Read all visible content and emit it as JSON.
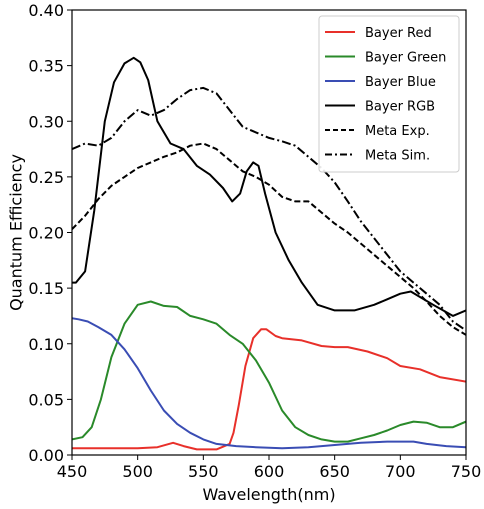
{
  "chart_data": {
    "type": "line",
    "xlabel": "Wavelength(nm)",
    "ylabel": "Quantum Efficiency",
    "xlim": [
      450,
      750
    ],
    "ylim": [
      0.0,
      0.4
    ],
    "xticks": [
      "450",
      "500",
      "550",
      "600",
      "650",
      "700",
      "750"
    ],
    "yticks": [
      "0.00",
      "0.05",
      "0.10",
      "0.15",
      "0.20",
      "0.25",
      "0.30",
      "0.35",
      "0.40"
    ],
    "grid": false,
    "legend_position": "top-right",
    "series": [
      {
        "name": "Bayer Red",
        "color": "#e8302a",
        "dash": "solid",
        "x": [
          450,
          460,
          480,
          500,
          515,
          527,
          535,
          545,
          560,
          570,
          573,
          577,
          582,
          588,
          594,
          598,
          605,
          610,
          625,
          640,
          650,
          660,
          675,
          690,
          700,
          715,
          730,
          750
        ],
        "y": [
          0.006,
          0.006,
          0.006,
          0.006,
          0.007,
          0.011,
          0.008,
          0.005,
          0.005,
          0.01,
          0.02,
          0.045,
          0.08,
          0.105,
          0.113,
          0.113,
          0.107,
          0.105,
          0.103,
          0.098,
          0.097,
          0.097,
          0.093,
          0.087,
          0.08,
          0.077,
          0.07,
          0.066
        ]
      },
      {
        "name": "Bayer Green",
        "color": "#2a8a2a",
        "dash": "solid",
        "x": [
          450,
          458,
          465,
          472,
          480,
          490,
          500,
          510,
          520,
          530,
          540,
          550,
          560,
          570,
          580,
          590,
          600,
          610,
          620,
          630,
          640,
          650,
          660,
          670,
          680,
          690,
          700,
          710,
          720,
          730,
          740,
          750
        ],
        "y": [
          0.014,
          0.016,
          0.025,
          0.05,
          0.088,
          0.118,
          0.135,
          0.138,
          0.134,
          0.133,
          0.125,
          0.122,
          0.118,
          0.108,
          0.1,
          0.085,
          0.065,
          0.04,
          0.025,
          0.018,
          0.014,
          0.012,
          0.012,
          0.015,
          0.018,
          0.022,
          0.027,
          0.03,
          0.029,
          0.025,
          0.025,
          0.03
        ]
      },
      {
        "name": "Bayer Blue",
        "color": "#3a4db4",
        "dash": "solid",
        "x": [
          450,
          455,
          462,
          470,
          480,
          490,
          500,
          510,
          520,
          530,
          540,
          550,
          560,
          575,
          590,
          610,
          630,
          650,
          670,
          690,
          700,
          710,
          720,
          735,
          750
        ],
        "y": [
          0.123,
          0.122,
          0.12,
          0.115,
          0.108,
          0.095,
          0.078,
          0.058,
          0.04,
          0.028,
          0.02,
          0.014,
          0.01,
          0.008,
          0.007,
          0.006,
          0.007,
          0.009,
          0.011,
          0.012,
          0.012,
          0.012,
          0.01,
          0.008,
          0.007
        ]
      },
      {
        "name": "Bayer RGB",
        "color": "#000000",
        "dash": "solid",
        "x": [
          450,
          453,
          460,
          467,
          475,
          482,
          490,
          497,
          502,
          508,
          515,
          525,
          535,
          545,
          555,
          565,
          572,
          578,
          583,
          588,
          592,
          597,
          605,
          615,
          625,
          637,
          650,
          665,
          680,
          690,
          700,
          708,
          715,
          725,
          740,
          750
        ],
        "y": [
          0.155,
          0.155,
          0.165,
          0.22,
          0.3,
          0.335,
          0.352,
          0.357,
          0.353,
          0.337,
          0.3,
          0.28,
          0.275,
          0.26,
          0.252,
          0.24,
          0.228,
          0.235,
          0.255,
          0.263,
          0.26,
          0.235,
          0.2,
          0.175,
          0.155,
          0.135,
          0.13,
          0.13,
          0.135,
          0.14,
          0.145,
          0.147,
          0.142,
          0.135,
          0.125,
          0.13
        ]
      },
      {
        "name": "Meta Exp.",
        "color": "#000000",
        "dash": "dashed",
        "x": [
          450,
          460,
          470,
          480,
          490,
          500,
          510,
          520,
          530,
          540,
          550,
          560,
          570,
          580,
          590,
          600,
          610,
          620,
          630,
          640,
          650,
          660,
          670,
          680,
          690,
          700,
          710,
          720,
          730,
          740,
          750
        ],
        "y": [
          0.203,
          0.215,
          0.23,
          0.242,
          0.25,
          0.258,
          0.263,
          0.268,
          0.272,
          0.278,
          0.28,
          0.275,
          0.265,
          0.255,
          0.25,
          0.243,
          0.232,
          0.228,
          0.228,
          0.218,
          0.208,
          0.2,
          0.19,
          0.18,
          0.17,
          0.16,
          0.15,
          0.138,
          0.125,
          0.115,
          0.108
        ]
      },
      {
        "name": "Meta Sim.",
        "color": "#000000",
        "dash": "dashdot",
        "x": [
          450,
          460,
          470,
          480,
          490,
          500,
          510,
          520,
          530,
          540,
          550,
          560,
          570,
          580,
          590,
          600,
          610,
          620,
          630,
          640,
          650,
          660,
          670,
          680,
          690,
          700,
          710,
          720,
          730,
          740,
          750
        ],
        "y": [
          0.275,
          0.28,
          0.278,
          0.285,
          0.3,
          0.31,
          0.305,
          0.31,
          0.32,
          0.328,
          0.33,
          0.325,
          0.31,
          0.295,
          0.29,
          0.285,
          0.282,
          0.278,
          0.268,
          0.258,
          0.245,
          0.228,
          0.21,
          0.195,
          0.18,
          0.165,
          0.155,
          0.145,
          0.135,
          0.12,
          0.112
        ]
      }
    ]
  }
}
